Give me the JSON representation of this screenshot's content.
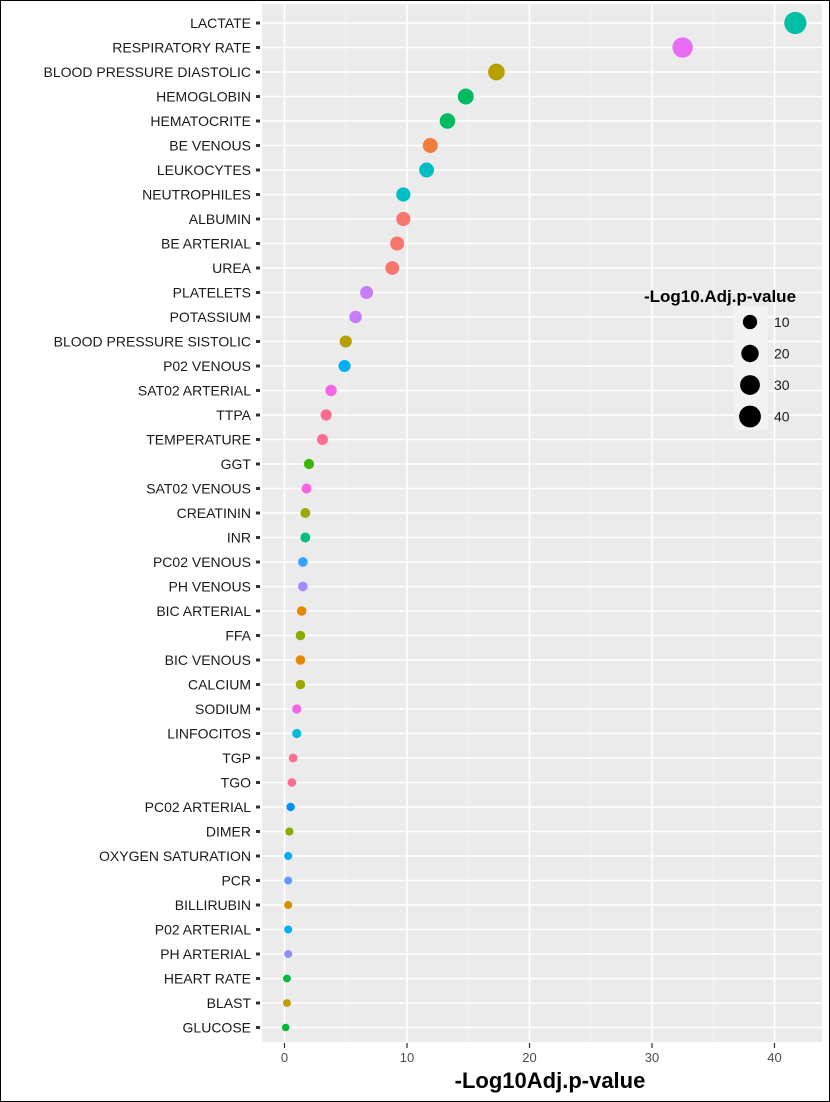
{
  "chart_data": {
    "type": "scatter",
    "title": "",
    "xlabel": "-Log10Adj.p-value",
    "ylabel": "",
    "xlim": [
      -2,
      43
    ],
    "xticks": [
      0,
      10,
      20,
      30,
      40
    ],
    "xtick_labels": [
      "0",
      "10",
      "20",
      "30",
      "40"
    ],
    "grid": true,
    "legend_position": "right",
    "legend": {
      "title": "-Log10.Adj.p-value",
      "sizes": [
        10,
        20,
        30,
        40
      ],
      "labels": [
        "10",
        "20",
        "30",
        "40"
      ]
    },
    "points": [
      {
        "label": "LACTATE",
        "x": 41.7,
        "color": "#00BFA5"
      },
      {
        "label": "RESPIRATORY RATE",
        "x": 32.5,
        "color": "#E76BF3"
      },
      {
        "label": "BLOOD PRESSURE DIASTOLIC",
        "x": 17.3,
        "color": "#B79F00"
      },
      {
        "label": "HEMOGLOBIN",
        "x": 14.8,
        "color": "#00BA62"
      },
      {
        "label": "HEMATOCRITE",
        "x": 13.3,
        "color": "#00BA62"
      },
      {
        "label": "BE VENOUS",
        "x": 11.9,
        "color": "#F07D3A"
      },
      {
        "label": "LEUKOCYTES",
        "x": 11.6,
        "color": "#00BFC4"
      },
      {
        "label": "NEUTROPHILES",
        "x": 9.7,
        "color": "#00BFC4"
      },
      {
        "label": "ALBUMIN",
        "x": 9.7,
        "color": "#F8766D"
      },
      {
        "label": "BE ARTERIAL",
        "x": 9.2,
        "color": "#F8766D"
      },
      {
        "label": "UREA",
        "x": 8.8,
        "color": "#F8766D"
      },
      {
        "label": "PLATELETS",
        "x": 6.7,
        "color": "#C77CFF"
      },
      {
        "label": "POTASSIUM",
        "x": 5.8,
        "color": "#C77CFF"
      },
      {
        "label": "BLOOD PRESSURE SISTOLIC",
        "x": 5.0,
        "color": "#B79F00"
      },
      {
        "label": "P02 VENOUS",
        "x": 4.9,
        "color": "#00B0F6"
      },
      {
        "label": "SAT02 ARTERIAL",
        "x": 3.8,
        "color": "#F564E3"
      },
      {
        "label": "TTPA",
        "x": 3.4,
        "color": "#FF6C91"
      },
      {
        "label": "TEMPERATURE",
        "x": 3.1,
        "color": "#FF6C91"
      },
      {
        "label": "GGT",
        "x": 2.0,
        "color": "#39B600"
      },
      {
        "label": "SAT02 VENOUS",
        "x": 1.8,
        "color": "#F564E3"
      },
      {
        "label": "CREATININ",
        "x": 1.7,
        "color": "#9CA700"
      },
      {
        "label": "INR",
        "x": 1.7,
        "color": "#00BF7D"
      },
      {
        "label": "PC02 VENOUS",
        "x": 1.5,
        "color": "#35A2FF"
      },
      {
        "label": "PH VENOUS",
        "x": 1.5,
        "color": "#A58AFF"
      },
      {
        "label": "BIC ARTERIAL",
        "x": 1.4,
        "color": "#E58700"
      },
      {
        "label": "FFA",
        "x": 1.3,
        "color": "#85AD00"
      },
      {
        "label": "BIC VENOUS",
        "x": 1.3,
        "color": "#E58700"
      },
      {
        "label": "CALCIUM",
        "x": 1.3,
        "color": "#9CA700"
      },
      {
        "label": "SODIUM",
        "x": 1.0,
        "color": "#F564E3"
      },
      {
        "label": "LINFOCITOS",
        "x": 1.0,
        "color": "#00BCD8"
      },
      {
        "label": "TGP",
        "x": 0.7,
        "color": "#FF6C91"
      },
      {
        "label": "TGO",
        "x": 0.6,
        "color": "#FF6C91"
      },
      {
        "label": "PC02 ARTERIAL",
        "x": 0.5,
        "color": "#0091FF"
      },
      {
        "label": "DIMER",
        "x": 0.4,
        "color": "#85AD00"
      },
      {
        "label": "OXYGEN SATURATION",
        "x": 0.3,
        "color": "#00B0F6"
      },
      {
        "label": "PCR",
        "x": 0.3,
        "color": "#619CFF"
      },
      {
        "label": "BILLIRUBIN",
        "x": 0.3,
        "color": "#D89000"
      },
      {
        "label": "P02 ARTERIAL",
        "x": 0.3,
        "color": "#00B0F6"
      },
      {
        "label": "PH ARTERIAL",
        "x": 0.3,
        "color": "#8F91FF"
      },
      {
        "label": "HEART RATE",
        "x": 0.2,
        "color": "#00BA38"
      },
      {
        "label": "BLAST",
        "x": 0.2,
        "color": "#C49A00"
      },
      {
        "label": "GLUCOSE",
        "x": 0.1,
        "color": "#00BA38"
      }
    ]
  }
}
